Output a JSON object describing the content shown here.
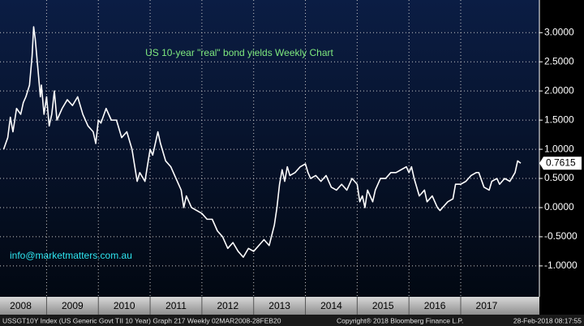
{
  "chart_data": {
    "type": "line",
    "title": "US 10-year \"real\" bond yields Weekly Chart",
    "annotation": "info@marketmatters.com.au",
    "footer": {
      "left": "USSGT10Y Index (US Generic Govt TII 10 Year) Graph 217  Weekly 02MAR2008-28FEB20",
      "middle": "Copyright® 2018 Bloomberg Finance L.P.",
      "right": "28-Feb-2018 08:17:55"
    },
    "x": [
      2008.17,
      2008.25,
      2008.3,
      2008.35,
      2008.42,
      2008.5,
      2008.55,
      2008.6,
      2008.67,
      2008.72,
      2008.75,
      2008.78,
      2008.83,
      2008.88,
      2008.9,
      2008.95,
      2009.0,
      2009.05,
      2009.1,
      2009.15,
      2009.2,
      2009.3,
      2009.4,
      2009.5,
      2009.6,
      2009.7,
      2009.8,
      2009.9,
      2009.95,
      2010.0,
      2010.05,
      2010.15,
      2010.25,
      2010.35,
      2010.45,
      2010.55,
      2010.65,
      2010.75,
      2010.8,
      2010.9,
      2011.0,
      2011.05,
      2011.15,
      2011.2,
      2011.3,
      2011.4,
      2011.5,
      2011.6,
      2011.65,
      2011.7,
      2011.8,
      2011.9,
      2012.0,
      2012.1,
      2012.2,
      2012.3,
      2012.4,
      2012.5,
      2012.6,
      2012.7,
      2012.8,
      2012.9,
      2013.0,
      2013.1,
      2013.2,
      2013.3,
      2013.4,
      2013.45,
      2013.5,
      2013.55,
      2013.6,
      2013.65,
      2013.7,
      2013.8,
      2013.9,
      2014.0,
      2014.05,
      2014.1,
      2014.2,
      2014.3,
      2014.4,
      2014.5,
      2014.6,
      2014.7,
      2014.8,
      2014.9,
      2015.0,
      2015.05,
      2015.1,
      2015.15,
      2015.2,
      2015.3,
      2015.35,
      2015.45,
      2015.55,
      2015.65,
      2015.75,
      2015.85,
      2015.95,
      2016.0,
      2016.05,
      2016.1,
      2016.2,
      2016.3,
      2016.35,
      2016.45,
      2016.55,
      2016.6,
      2016.7,
      2016.75,
      2016.85,
      2016.9,
      2017.0,
      2017.1,
      2017.2,
      2017.3,
      2017.35,
      2017.45,
      2017.55,
      2017.6,
      2017.7,
      2017.75,
      2017.85,
      2017.95,
      2018.05,
      2018.1,
      2018.16
    ],
    "series": [
      {
        "name": "USSGT10Y Index",
        "color": "#ffffff",
        "values": [
          1.0,
          1.2,
          1.55,
          1.3,
          1.7,
          1.6,
          1.8,
          1.9,
          2.1,
          2.6,
          3.1,
          2.9,
          2.4,
          1.9,
          2.1,
          1.6,
          1.9,
          1.4,
          1.6,
          2.0,
          1.5,
          1.7,
          1.85,
          1.75,
          1.9,
          1.6,
          1.4,
          1.3,
          1.1,
          1.5,
          1.45,
          1.7,
          1.5,
          1.5,
          1.2,
          1.3,
          1.0,
          0.45,
          0.6,
          0.45,
          1.0,
          0.9,
          1.3,
          1.1,
          0.8,
          0.7,
          0.5,
          0.3,
          0.0,
          0.2,
          0.0,
          -0.05,
          -0.1,
          -0.2,
          -0.2,
          -0.4,
          -0.5,
          -0.7,
          -0.6,
          -0.75,
          -0.85,
          -0.7,
          -0.75,
          -0.65,
          -0.55,
          -0.65,
          -0.3,
          0.0,
          0.4,
          0.65,
          0.45,
          0.7,
          0.55,
          0.6,
          0.7,
          0.75,
          0.6,
          0.5,
          0.55,
          0.45,
          0.55,
          0.35,
          0.3,
          0.4,
          0.3,
          0.5,
          0.4,
          0.1,
          0.2,
          0.0,
          0.3,
          0.1,
          0.3,
          0.5,
          0.5,
          0.6,
          0.6,
          0.65,
          0.7,
          0.6,
          0.7,
          0.5,
          0.2,
          0.3,
          0.1,
          0.2,
          0.0,
          -0.05,
          0.05,
          0.1,
          0.15,
          0.4,
          0.4,
          0.45,
          0.55,
          0.6,
          0.6,
          0.35,
          0.3,
          0.45,
          0.5,
          0.4,
          0.5,
          0.45,
          0.6,
          0.8,
          0.7615
        ]
      }
    ],
    "xlim": [
      2008.1,
      2018.52
    ],
    "xticks": [
      2008,
      2009,
      2010,
      2011,
      2012,
      2013,
      2014,
      2015,
      2016,
      2017
    ],
    "ylim": [
      -1.53,
      3.56
    ],
    "yticks": [
      {
        "value": -1,
        "label": "-1.0000"
      },
      {
        "value": -0.5,
        "label": "-0.5000"
      },
      {
        "value": 0,
        "label": "0.0000"
      },
      {
        "value": 0.5,
        "label": "0.5000"
      },
      {
        "value": 1,
        "label": "1.0000"
      },
      {
        "value": 1.5,
        "label": "1.5000"
      },
      {
        "value": 2,
        "label": "2.0000"
      },
      {
        "value": 2.5,
        "label": "2.5000"
      },
      {
        "value": 3,
        "label": "3.0000"
      }
    ],
    "grid": true
  }
}
